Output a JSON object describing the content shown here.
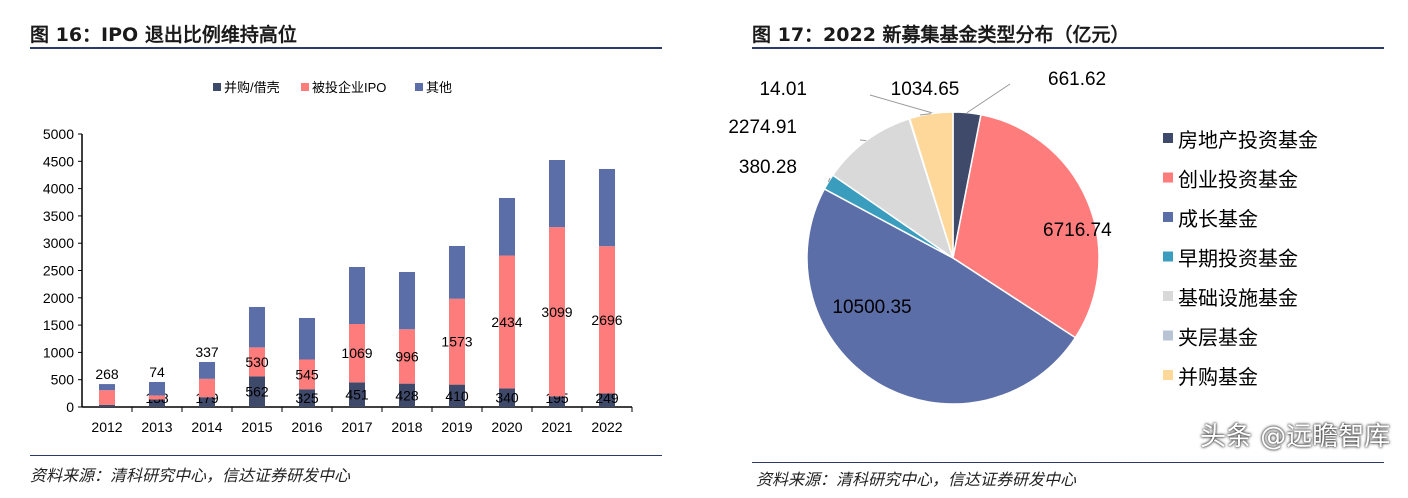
{
  "left": {
    "title": "图 16：IPO 退出比例维持高位",
    "source": "资料来源：清科研究中心，信达证券研发中心"
  },
  "right": {
    "title": "图 17：2022 新募集基金类型分布（亿元）",
    "source": "资料来源：清科研究中心，信达证券研发中心"
  },
  "watermark": "头条 @远瞻智库",
  "chart_data": [
    {
      "type": "bar",
      "stacked": true,
      "categories": [
        "2012",
        "2013",
        "2014",
        "2015",
        "2016",
        "2017",
        "2018",
        "2019",
        "2020",
        "2021",
        "2022"
      ],
      "series": [
        {
          "name": "并购/借壳",
          "color": "#3f4a6b",
          "values": [
            40,
            138,
            179,
            562,
            325,
            451,
            428,
            410,
            340,
            195,
            249
          ],
          "labeled": true
        },
        {
          "name": "被投企业IPO",
          "color": "#ff7c7c",
          "values": [
            268,
            74,
            337,
            530,
            545,
            1069,
            996,
            1573,
            2434,
            3099,
            2696
          ],
          "labeled": true
        },
        {
          "name": "其他",
          "color": "#5b6ea8",
          "values": [
            112,
            246,
            308,
            740,
            760,
            1044,
            1049,
            966,
            1054,
            1230,
            1414
          ],
          "labeled": false
        }
      ],
      "ylim": [
        0,
        5000
      ],
      "yticks": [
        0,
        500,
        1000,
        1500,
        2000,
        2500,
        3000,
        3500,
        4000,
        4500,
        5000
      ],
      "legend": "top",
      "grid": false
    },
    {
      "type": "pie",
      "labels": [
        "房地产投资基金",
        "创业投资基金",
        "成长基金",
        "早期投资基金",
        "基础设施基金",
        "夹层基金",
        "并购基金"
      ],
      "values": [
        661.62,
        6716.74,
        10500.35,
        380.28,
        2274.91,
        14.01,
        1034.65
      ],
      "value_labels": [
        "661.62",
        "6716.74",
        "10500.35",
        "380.28",
        "2274.91",
        "14.01",
        "1034.65"
      ],
      "colors": [
        "#3f4a6b",
        "#ff7c7c",
        "#5b6ea8",
        "#3a9dbd",
        "#d9d9d9",
        "#b8c4d6",
        "#fdd89a"
      ],
      "legend": "right"
    }
  ]
}
